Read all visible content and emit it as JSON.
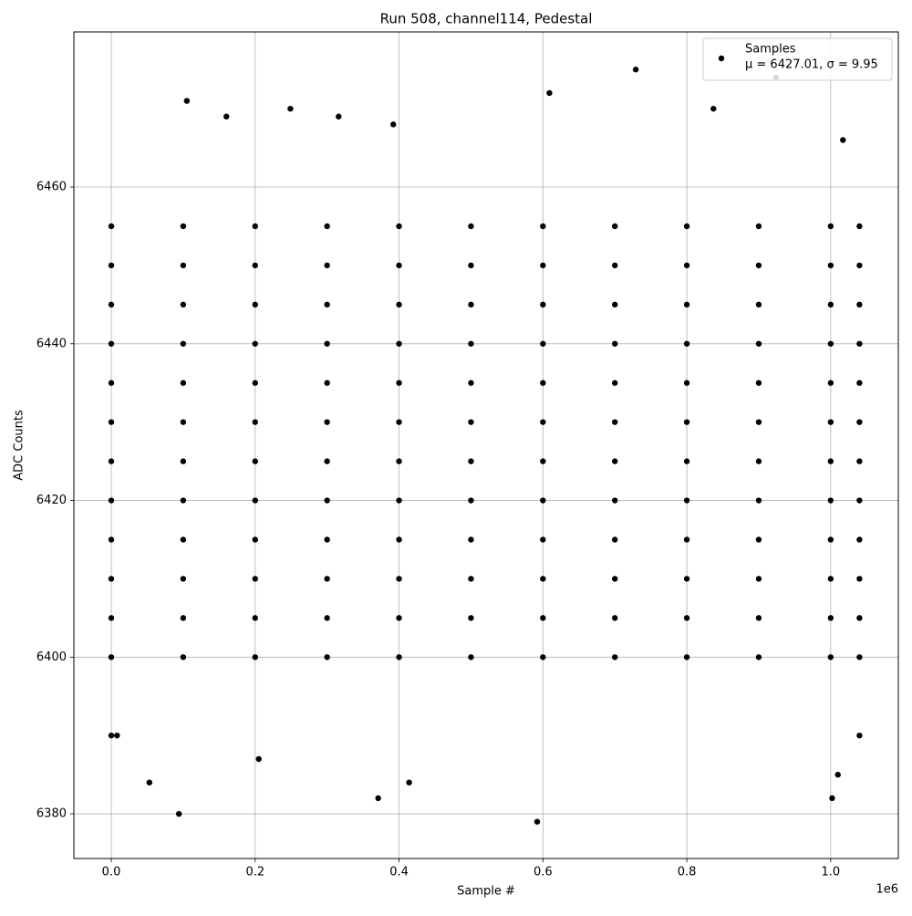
{
  "chart_data": {
    "type": "scatter",
    "title": "Run 508, channel114, Pedestal",
    "xlabel": "Sample #",
    "ylabel": "ADC Counts",
    "x_offset_label": "1e6",
    "legend_note": "μ = 6427.01, σ = 9.95",
    "legend_position": "upper right",
    "grid": true,
    "xlim": [
      -52000,
      1094000
    ],
    "ylim": [
      6374.3,
      6479.8
    ],
    "xticks": [
      {
        "value": 0,
        "label": "0.0"
      },
      {
        "value": 200000,
        "label": "0.2"
      },
      {
        "value": 400000,
        "label": "0.4"
      },
      {
        "value": 600000,
        "label": "0.6"
      },
      {
        "value": 800000,
        "label": "0.8"
      },
      {
        "value": 1000000,
        "label": "1.0"
      }
    ],
    "yticks": [
      6380,
      6400,
      6420,
      6440,
      6460
    ],
    "x": [
      0,
      100000,
      200000,
      300000,
      400000,
      500000,
      600000,
      700000,
      800000,
      900000,
      1000000,
      1040000,
      0,
      100000,
      200000,
      300000,
      400000,
      500000,
      600000,
      700000,
      800000,
      900000,
      1000000,
      1040000,
      0,
      100000,
      200000,
      300000,
      400000,
      500000,
      600000,
      700000,
      800000,
      900000,
      1000000,
      1040000,
      0,
      100000,
      200000,
      300000,
      400000,
      500000,
      600000,
      700000,
      800000,
      900000,
      1000000,
      1040000,
      0,
      100000,
      200000,
      300000,
      400000,
      500000,
      600000,
      700000,
      800000,
      900000,
      1000000,
      1040000,
      0,
      100000,
      200000,
      300000,
      400000,
      500000,
      600000,
      700000,
      800000,
      900000,
      1000000,
      1040000,
      0,
      100000,
      200000,
      300000,
      400000,
      500000,
      600000,
      700000,
      800000,
      900000,
      1000000,
      1040000,
      0,
      100000,
      200000,
      300000,
      400000,
      500000,
      600000,
      700000,
      800000,
      900000,
      1000000,
      1040000,
      0,
      100000,
      200000,
      300000,
      400000,
      500000,
      600000,
      700000,
      800000,
      900000,
      1000000,
      1040000,
      0,
      100000,
      200000,
      300000,
      400000,
      500000,
      600000,
      700000,
      800000,
      900000,
      1000000,
      1040000,
      0,
      100000,
      200000,
      300000,
      400000,
      500000,
      600000,
      700000,
      800000,
      900000,
      1000000,
      1040000,
      0,
      100000,
      200000,
      300000,
      400000,
      500000,
      600000,
      700000,
      800000,
      900000,
      1000000,
      1040000,
      0,
      8000,
      53000,
      94000,
      105000,
      160000,
      205000,
      249000,
      316000,
      371000,
      392000,
      414000,
      592000,
      609000,
      729000,
      837000,
      924000,
      1002000,
      1010000,
      1017000,
      1040000
    ],
    "series": [
      {
        "name": "Samples",
        "color": "#000000",
        "values": [
          6400,
          6400,
          6400,
          6400,
          6400,
          6400,
          6400,
          6400,
          6400,
          6400,
          6400,
          6400,
          6405,
          6405,
          6405,
          6405,
          6405,
          6405,
          6405,
          6405,
          6405,
          6405,
          6405,
          6405,
          6410,
          6410,
          6410,
          6410,
          6410,
          6410,
          6410,
          6410,
          6410,
          6410,
          6410,
          6410,
          6415,
          6415,
          6415,
          6415,
          6415,
          6415,
          6415,
          6415,
          6415,
          6415,
          6415,
          6415,
          6420,
          6420,
          6420,
          6420,
          6420,
          6420,
          6420,
          6420,
          6420,
          6420,
          6420,
          6420,
          6425,
          6425,
          6425,
          6425,
          6425,
          6425,
          6425,
          6425,
          6425,
          6425,
          6425,
          6425,
          6430,
          6430,
          6430,
          6430,
          6430,
          6430,
          6430,
          6430,
          6430,
          6430,
          6430,
          6430,
          6435,
          6435,
          6435,
          6435,
          6435,
          6435,
          6435,
          6435,
          6435,
          6435,
          6435,
          6435,
          6440,
          6440,
          6440,
          6440,
          6440,
          6440,
          6440,
          6440,
          6440,
          6440,
          6440,
          6440,
          6445,
          6445,
          6445,
          6445,
          6445,
          6445,
          6445,
          6445,
          6445,
          6445,
          6445,
          6445,
          6450,
          6450,
          6450,
          6450,
          6450,
          6450,
          6450,
          6450,
          6450,
          6450,
          6450,
          6450,
          6455,
          6455,
          6455,
          6455,
          6455,
          6455,
          6455,
          6455,
          6455,
          6455,
          6455,
          6455,
          6390,
          6390,
          6384,
          6380,
          6471,
          6469,
          6387,
          6470,
          6469,
          6382,
          6468,
          6384,
          6379,
          6472,
          6475,
          6470,
          6474,
          6382,
          6385,
          6466,
          6390
        ]
      }
    ]
  }
}
